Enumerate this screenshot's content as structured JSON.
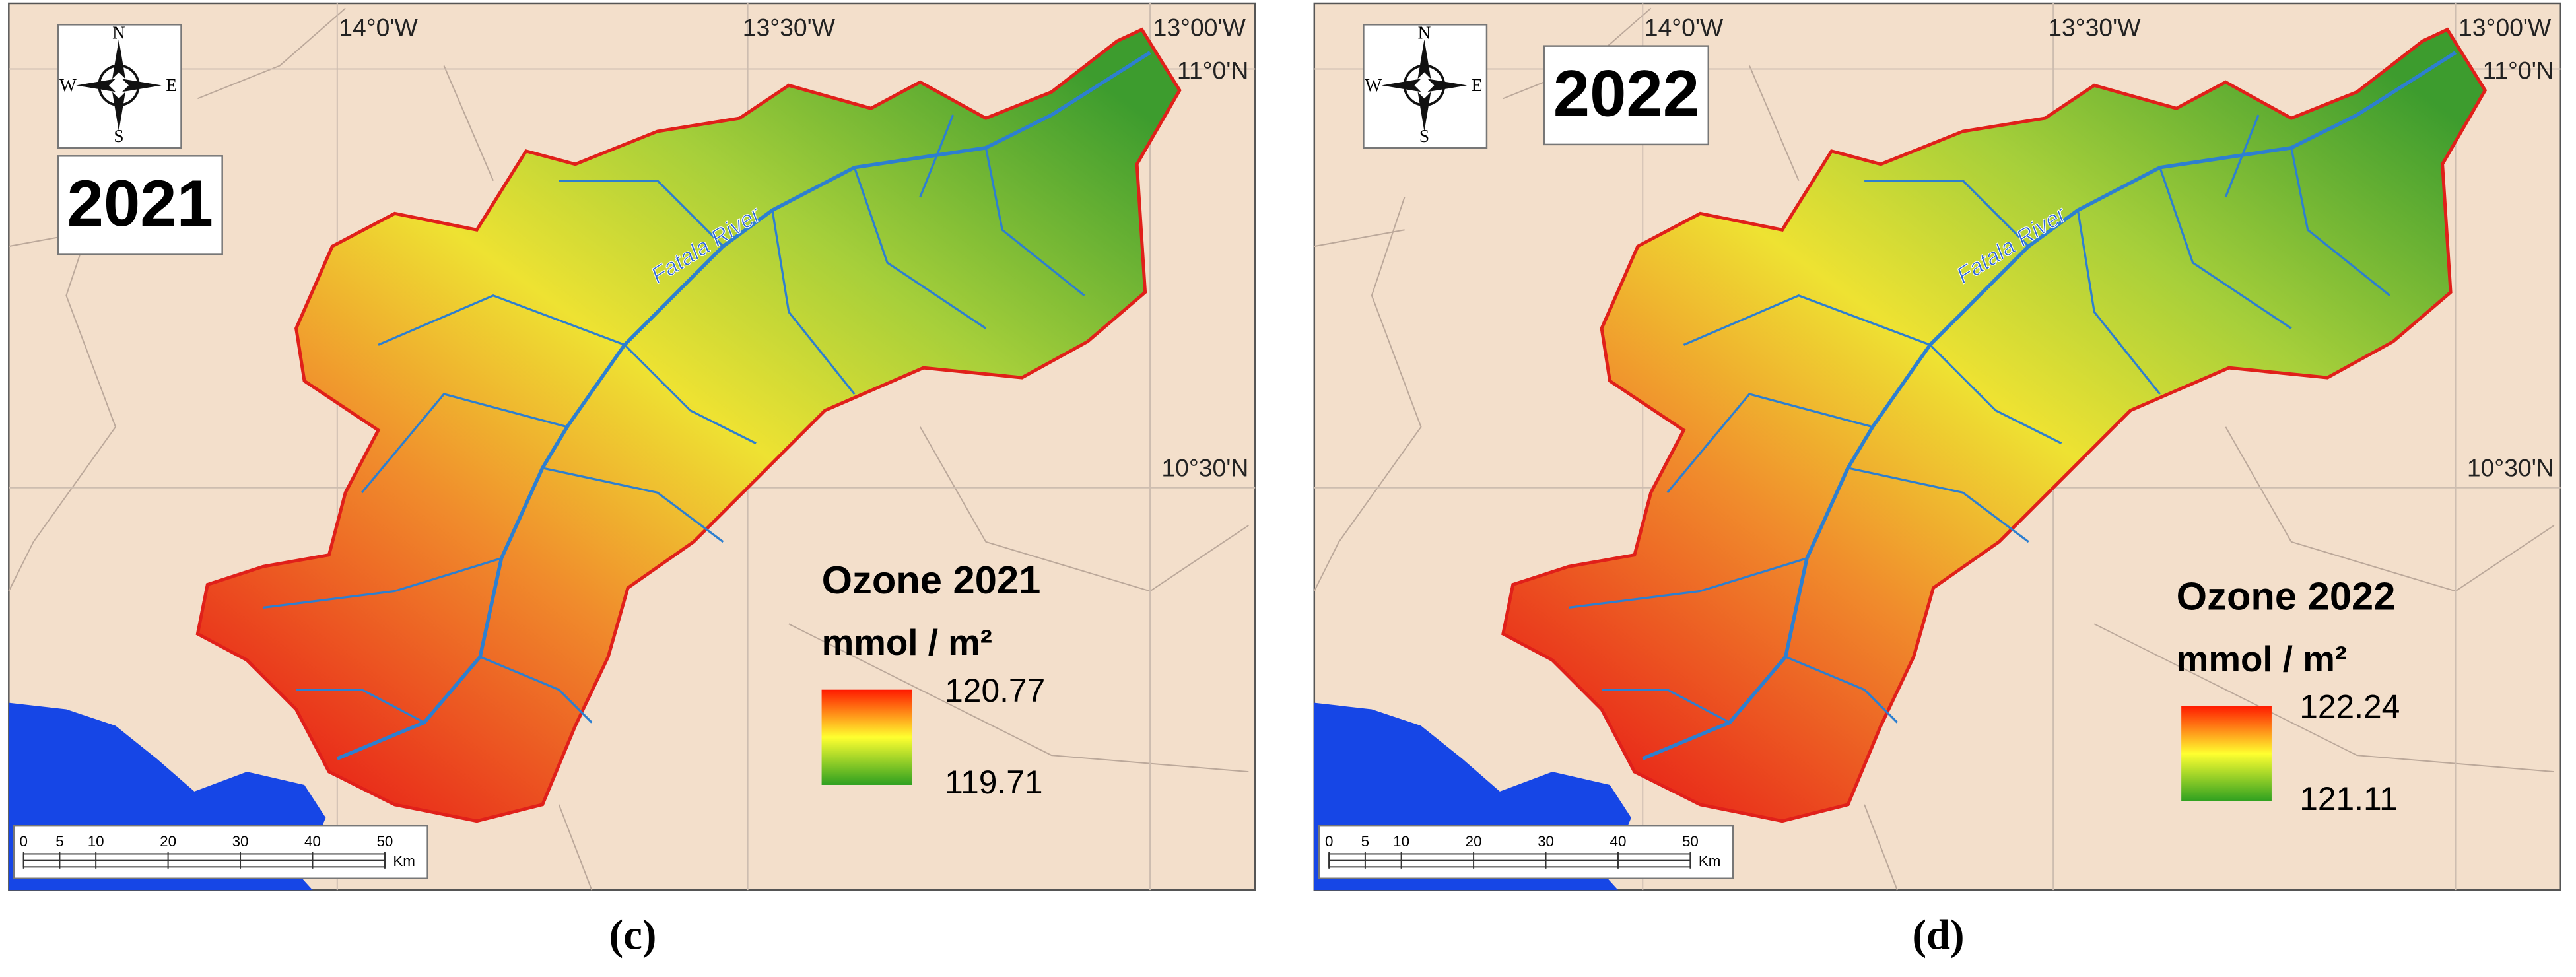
{
  "panels": [
    {
      "year_label": "2021",
      "legend_title": "Ozone 2021",
      "legend_unit": "mmol / m²",
      "legend_max": 120.77,
      "legend_min": 119.71,
      "river_label": "Fatala River",
      "longitude_labels": [
        "14°0'W",
        "13°30'W",
        "13°00'W"
      ],
      "latitude_labels": [
        "11°0'N",
        "10°30'N"
      ],
      "compass": [
        "N",
        "S",
        "W",
        "E"
      ],
      "scale_ticks": [
        0,
        5,
        10,
        20,
        30,
        40,
        50
      ],
      "scale_unit": "Km",
      "caption": "(c)"
    },
    {
      "year_label": "2022",
      "legend_title": "Ozone 2022",
      "legend_unit": "mmol / m²",
      "legend_max": 122.24,
      "legend_min": 121.11,
      "river_label": "Fatala River",
      "longitude_labels": [
        "14°0'W",
        "13°30'W",
        "13°00'W"
      ],
      "latitude_labels": [
        "11°0'N",
        "10°30'N"
      ],
      "compass": [
        "N",
        "S",
        "W",
        "E"
      ],
      "scale_ticks": [
        0,
        5,
        10,
        20,
        30,
        40,
        50
      ],
      "scale_unit": "Km",
      "caption": "(d)"
    }
  ]
}
